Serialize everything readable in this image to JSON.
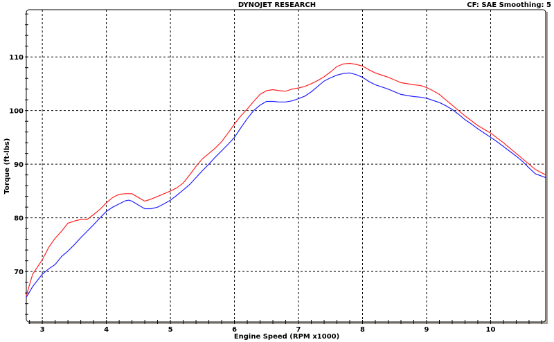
{
  "header": {
    "title": "DYNOJET RESEARCH",
    "settings": "CF: SAE  Smoothing: 5"
  },
  "chart_data": {
    "type": "line",
    "title": "DYNOJET RESEARCH",
    "xlabel": "Engine Speed (RPM x1000)",
    "ylabel": "Torque (ft-lbs)",
    "xlim": [
      2.75,
      10.86
    ],
    "ylim": [
      60.6,
      118.8
    ],
    "xticks": [
      3,
      4,
      5,
      6,
      7,
      8,
      9,
      10
    ],
    "yticks": [
      70,
      80,
      90,
      100,
      110
    ],
    "grid": true,
    "series": [
      {
        "color": "#ff2020",
        "x": [
          2.75,
          2.85,
          3.0,
          3.1,
          3.2,
          3.3,
          3.4,
          3.5,
          3.6,
          3.7,
          3.8,
          3.9,
          4.0,
          4.1,
          4.2,
          4.3,
          4.4,
          4.5,
          4.6,
          4.7,
          4.8,
          4.9,
          5.0,
          5.1,
          5.2,
          5.3,
          5.4,
          5.5,
          5.6,
          5.7,
          5.8,
          5.9,
          6.0,
          6.1,
          6.2,
          6.3,
          6.4,
          6.5,
          6.6,
          6.7,
          6.8,
          6.9,
          7.0,
          7.1,
          7.2,
          7.3,
          7.4,
          7.5,
          7.6,
          7.7,
          7.8,
          7.9,
          8.0,
          8.1,
          8.2,
          8.3,
          8.4,
          8.5,
          8.6,
          8.7,
          8.8,
          8.9,
          9.0,
          9.1,
          9.2,
          9.3,
          9.4,
          9.5,
          9.6,
          9.7,
          9.8,
          9.9,
          10.0,
          10.1,
          10.2,
          10.3,
          10.4,
          10.5,
          10.6,
          10.7,
          10.86
        ],
        "y": [
          65.5,
          69.5,
          72.2,
          74.5,
          76.2,
          77.5,
          79.0,
          79.4,
          79.7,
          79.7,
          80.6,
          81.6,
          82.8,
          83.8,
          84.4,
          84.5,
          84.5,
          83.8,
          83.1,
          83.5,
          84.0,
          84.5,
          85.0,
          85.6,
          86.5,
          88.0,
          89.6,
          91.0,
          92.0,
          93.0,
          94.2,
          95.8,
          97.5,
          99.0,
          100.3,
          101.7,
          103.0,
          103.7,
          103.9,
          103.7,
          103.6,
          104.0,
          104.2,
          104.5,
          105.0,
          105.6,
          106.3,
          107.2,
          108.2,
          108.7,
          108.8,
          108.6,
          108.3,
          107.6,
          107.0,
          106.6,
          106.2,
          105.7,
          105.2,
          105.0,
          104.8,
          104.7,
          104.3,
          103.7,
          103.0,
          102.0,
          101.0,
          100.0,
          99.0,
          98.1,
          97.2,
          96.5,
          95.8,
          94.9,
          94.0,
          93.0,
          92.0,
          91.0,
          90.0,
          89.0,
          88.0
        ]
      },
      {
        "color": "#2020ff",
        "x": [
          2.75,
          2.85,
          3.0,
          3.1,
          3.2,
          3.3,
          3.4,
          3.5,
          3.6,
          3.7,
          3.8,
          3.9,
          4.0,
          4.1,
          4.2,
          4.3,
          4.35,
          4.4,
          4.5,
          4.6,
          4.7,
          4.8,
          4.9,
          5.0,
          5.1,
          5.2,
          5.3,
          5.4,
          5.5,
          5.6,
          5.7,
          5.8,
          5.9,
          6.0,
          6.1,
          6.2,
          6.3,
          6.4,
          6.5,
          6.6,
          6.7,
          6.8,
          6.9,
          7.0,
          7.1,
          7.2,
          7.3,
          7.4,
          7.5,
          7.6,
          7.7,
          7.8,
          7.9,
          8.0,
          8.1,
          8.2,
          8.3,
          8.4,
          8.5,
          8.6,
          8.7,
          8.8,
          8.9,
          9.0,
          9.1,
          9.2,
          9.3,
          9.4,
          9.5,
          9.6,
          9.7,
          9.8,
          9.9,
          10.0,
          10.1,
          10.2,
          10.3,
          10.4,
          10.5,
          10.6,
          10.7,
          10.86
        ],
        "y": [
          65.2,
          67.2,
          69.5,
          70.5,
          71.3,
          72.8,
          73.8,
          75.0,
          76.3,
          77.5,
          78.7,
          80.0,
          81.2,
          82.0,
          82.6,
          83.2,
          83.3,
          83.1,
          82.4,
          81.7,
          81.7,
          82.0,
          82.6,
          83.3,
          84.2,
          85.2,
          86.2,
          87.5,
          88.8,
          90.0,
          91.3,
          92.5,
          93.7,
          95.0,
          96.8,
          98.5,
          100.0,
          101.0,
          101.7,
          101.7,
          101.6,
          101.6,
          101.8,
          102.2,
          102.7,
          103.5,
          104.5,
          105.5,
          106.1,
          106.6,
          106.9,
          107.0,
          106.7,
          106.2,
          105.4,
          104.8,
          104.4,
          104.0,
          103.5,
          103.0,
          102.8,
          102.6,
          102.5,
          102.3,
          101.9,
          101.5,
          100.9,
          100.2,
          99.3,
          98.3,
          97.5,
          96.6,
          95.8,
          95.0,
          94.2,
          93.3,
          92.4,
          91.5,
          90.5,
          89.3,
          88.2,
          87.5
        ]
      }
    ]
  }
}
